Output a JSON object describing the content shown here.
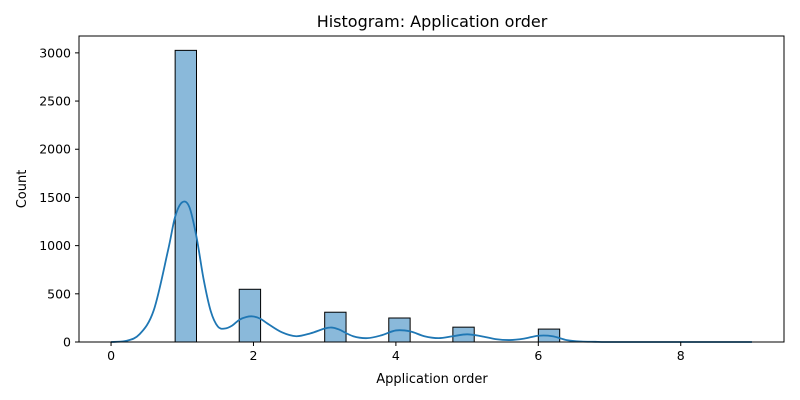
{
  "chart_data": {
    "type": "bar",
    "subtype": "histogram",
    "title": "Histogram: Application order",
    "xlabel": "Application order",
    "ylabel": "Count",
    "xlim": [
      -0.45,
      9.45
    ],
    "ylim": [
      0,
      3175
    ],
    "xticks": [
      0,
      2,
      4,
      6,
      8
    ],
    "yticks": [
      0,
      500,
      1000,
      1500,
      2000,
      2500,
      3000
    ],
    "bins": [
      {
        "x0": 0.9,
        "x1": 1.2,
        "count": 3026
      },
      {
        "x0": 1.8,
        "x1": 2.1,
        "count": 547
      },
      {
        "x0": 3.0,
        "x1": 3.3,
        "count": 309
      },
      {
        "x0": 3.9,
        "x1": 4.2,
        "count": 249
      },
      {
        "x0": 4.8,
        "x1": 5.1,
        "count": 154
      },
      {
        "x0": 6.0,
        "x1": 6.3,
        "count": 134
      }
    ],
    "kde": {
      "x": [
        0.0,
        0.2,
        0.4,
        0.6,
        0.8,
        0.9,
        1.0,
        1.1,
        1.2,
        1.3,
        1.4,
        1.5,
        1.6,
        1.7,
        1.8,
        1.9,
        2.0,
        2.1,
        2.2,
        2.4,
        2.6,
        2.8,
        3.0,
        3.1,
        3.2,
        3.4,
        3.6,
        3.8,
        4.0,
        4.2,
        4.4,
        4.6,
        4.8,
        5.0,
        5.2,
        5.4,
        5.6,
        5.8,
        6.0,
        6.2,
        6.4,
        6.6,
        6.8,
        7.0,
        8.0,
        9.0
      ],
      "y": [
        0,
        10,
        80,
        330,
        950,
        1300,
        1450,
        1400,
        1090,
        650,
        320,
        160,
        140,
        170,
        230,
        260,
        265,
        240,
        190,
        100,
        60,
        90,
        140,
        150,
        130,
        60,
        40,
        70,
        120,
        110,
        60,
        40,
        60,
        80,
        60,
        30,
        20,
        35,
        65,
        60,
        20,
        5,
        2,
        0,
        0,
        0
      ]
    },
    "bar_color": "#8ab9da",
    "bar_edge": "#000000",
    "line_color": "#1f77b4",
    "grid": false,
    "legend": "none"
  }
}
